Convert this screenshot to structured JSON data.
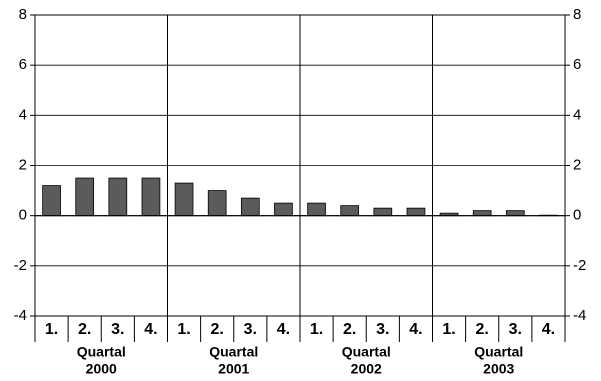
{
  "chart_data": {
    "type": "bar",
    "categories": [
      "1.",
      "2.",
      "3.",
      "4.",
      "1.",
      "2.",
      "3.",
      "4.",
      "1.",
      "2.",
      "3.",
      "4.",
      "1.",
      "2.",
      "3.",
      "4."
    ],
    "values": [
      1.2,
      1.5,
      1.5,
      1.5,
      1.3,
      1.0,
      0.7,
      0.5,
      0.5,
      0.4,
      0.3,
      0.3,
      0.1,
      0.2,
      0.2,
      0.02
    ],
    "groups": [
      {
        "name": "Quartal",
        "year": "2000"
      },
      {
        "name": "Quartal",
        "year": "2001"
      },
      {
        "name": "Quartal",
        "year": "2002"
      },
      {
        "name": "Quartal",
        "year": "2003"
      }
    ],
    "color": "#5b5b5b",
    "ylim": [
      -4,
      8
    ],
    "yticks": [
      -4,
      -2,
      0,
      2,
      4,
      6,
      8
    ],
    "grid": true
  }
}
